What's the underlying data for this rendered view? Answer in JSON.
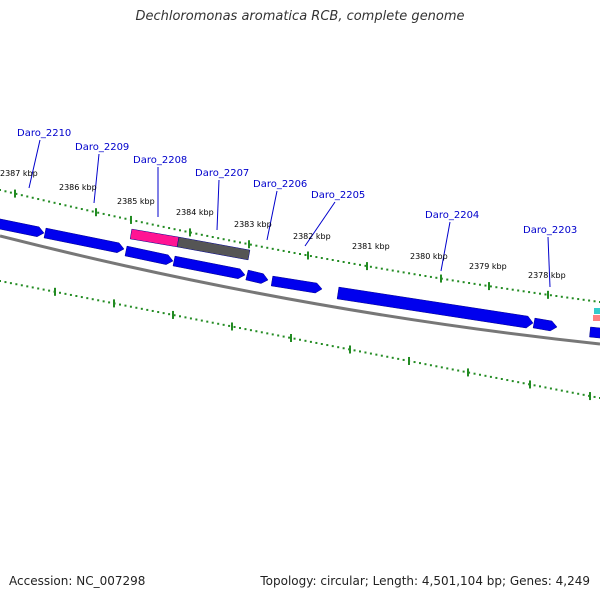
{
  "title": "Dechloromonas aromatica RCB, complete genome",
  "accession": "Accession: NC_007298",
  "summary": "Topology: circular; Length: 4,501,104 bp; Genes: 4,249",
  "colors": {
    "forward_gene": "#0000ee",
    "highlight_gene": "#ff1493",
    "pseudo_gene": "#555555",
    "tick": "#228b22",
    "backbone": "#777777",
    "label_line": "#0000cc",
    "cyan_feature": "#33cccc",
    "salmon_feature": "#ff8080"
  },
  "tick_labels": [
    "2387 kbp",
    "2386 kbp",
    "2385 kbp",
    "2384 kbp",
    "2383 kbp",
    "2382 kbp",
    "2381 kbp",
    "2380 kbp",
    "2379 kbp",
    "2378 kbp"
  ],
  "gene_labels": [
    "Daro_2210",
    "Daro_2209",
    "Daro_2208",
    "Daro_2207",
    "Daro_2206",
    "Daro_2205",
    "Daro_2204",
    "Daro_2203"
  ]
}
